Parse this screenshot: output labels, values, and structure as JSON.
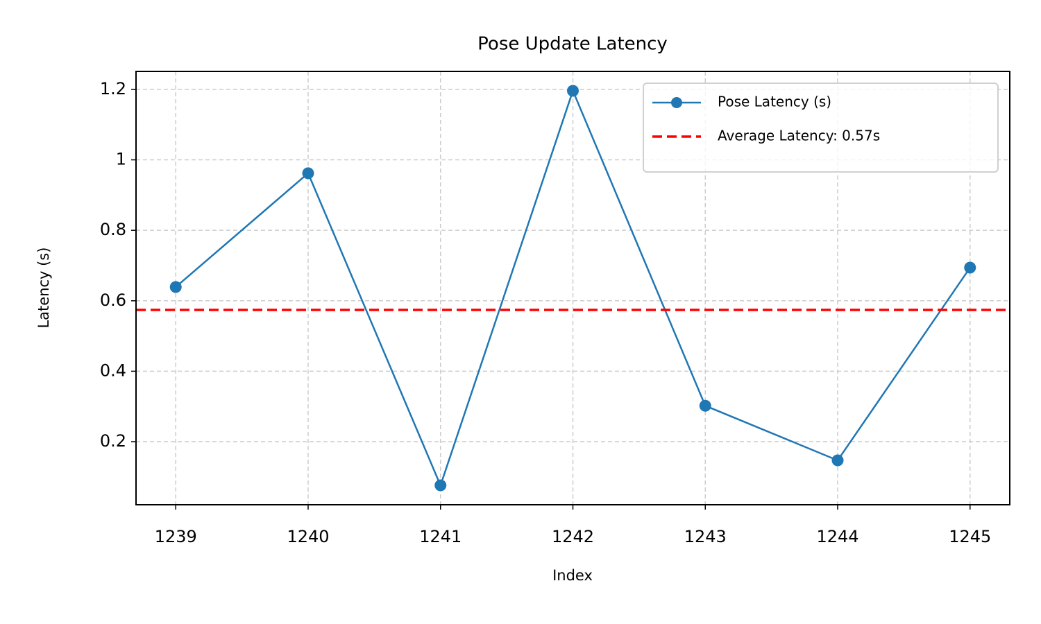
{
  "chart_data": {
    "type": "line",
    "title": "Pose Update Latency",
    "x_label": "Index",
    "y_label": "Latency (s)",
    "x": [
      1239,
      1240,
      1241,
      1242,
      1243,
      1244,
      1245
    ],
    "series": [
      {
        "name": "Pose Latency (s)",
        "color": "#1f77b4",
        "values": [
          0.639,
          0.962,
          0.076,
          1.196,
          0.302,
          0.147,
          0.694
        ]
      }
    ],
    "hlines": [
      {
        "name": "Average Latency: 0.57s",
        "color": "#ff0000",
        "value": 0.574,
        "style": "dashed"
      }
    ],
    "xlim": [
      1238.7,
      1245.3
    ],
    "xticks": [
      1239,
      1240,
      1241,
      1242,
      1243,
      1244,
      1245
    ],
    "ylim": [
      0.021,
      1.251
    ],
    "yticks": [
      0.2,
      0.4,
      0.6,
      0.8,
      1.0,
      1.2
    ],
    "grid": true,
    "legend": "upper right"
  }
}
